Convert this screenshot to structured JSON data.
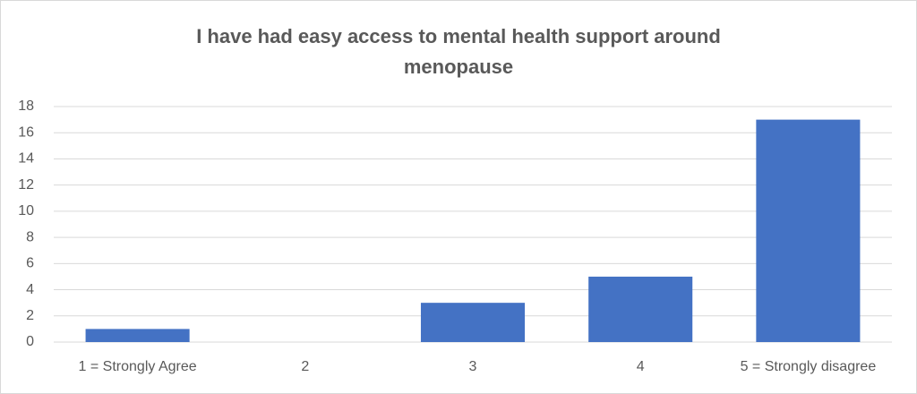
{
  "chart_data": {
    "type": "bar",
    "title": "I have had easy access to mental health support around menopause",
    "categories": [
      "1 = Strongly Agree",
      "2",
      "3",
      "4",
      "5 = Strongly disagree"
    ],
    "values": [
      1,
      0,
      3,
      5,
      17
    ],
    "color": "#4472c4",
    "ylim": [
      0,
      18
    ],
    "yticks": [
      0,
      2,
      4,
      6,
      8,
      10,
      12,
      14,
      16,
      18
    ],
    "grid": true
  }
}
